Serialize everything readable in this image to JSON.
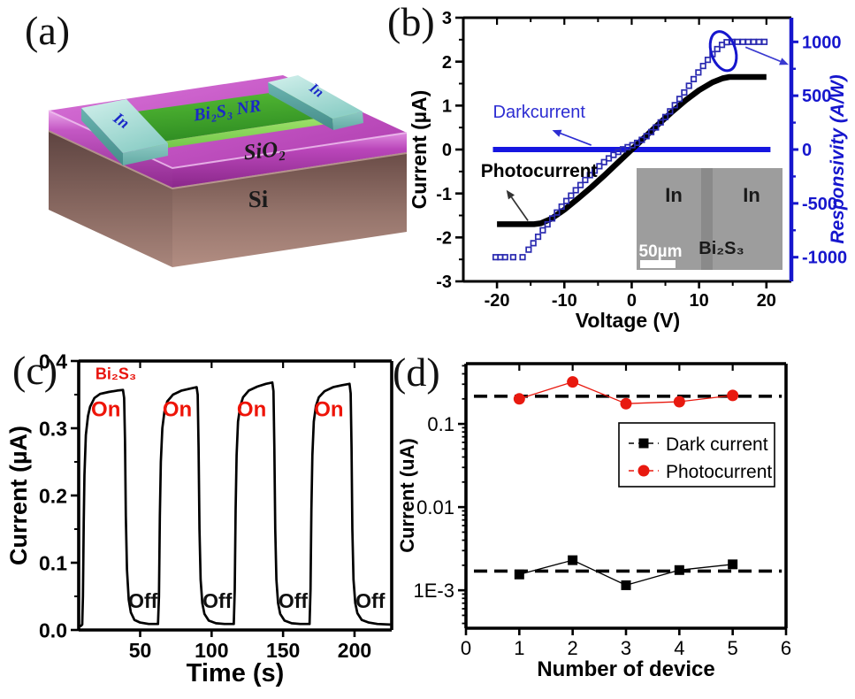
{
  "figure": {
    "background": "#ffffff",
    "panels": {
      "a": {
        "tag": "(a)",
        "labels": {
          "electrode_left": "In",
          "electrode_right": "In",
          "nanoribbon": "Bi₂S₃ NR",
          "oxide": "SiO₂",
          "substrate": "Si"
        },
        "colors": {
          "oxide": "#bb44bb",
          "substrate": "#7a5a52",
          "nanoribbon": "#3fa42c",
          "electrode": "#a9dcd6",
          "label_blue": "#1a28c8"
        }
      },
      "b": {
        "tag": "(b)"
      },
      "c": {
        "tag": "(c)"
      },
      "d": {
        "tag": "(d)"
      }
    }
  },
  "chart_data": [
    {
      "id": "b",
      "type": "line",
      "xlabel": "Voltage (V)",
      "ylabel": "Current (µA)",
      "y2label": "Responsivity (A/W)",
      "xlim": [
        -25,
        23.7
      ],
      "ylim": [
        -3,
        3
      ],
      "y2lim": [
        -1224.5,
        1224.5
      ],
      "x_major_ticks": [
        -20,
        -10,
        0,
        10,
        20
      ],
      "x_minor_ticks": [
        -15,
        -5,
        5,
        15
      ],
      "y_major_ticks": [
        -3,
        -2,
        -1,
        0,
        1,
        2,
        3
      ],
      "y_minor_ticks": [
        -2.5,
        -1.5,
        -0.5,
        0.5,
        1.5,
        2.5
      ],
      "y2_major_ticks": [
        1000,
        500,
        0,
        -500,
        -1000
      ],
      "y2_minor_ticks": [
        750,
        250,
        -250,
        -750
      ],
      "axis_color": "#000000",
      "y2_color": "#1616cd",
      "grid": false,
      "series": [
        {
          "name": "Darkcurrent",
          "type": "line",
          "axis": "y",
          "color": "#1616e0",
          "width": 6,
          "points": [
            [
              -20.6,
              0
            ],
            [
              20.6,
              0
            ]
          ]
        },
        {
          "name": "Photocurrent",
          "type": "line",
          "axis": "y",
          "color": "#000000",
          "width": 6.5,
          "points": [
            [
              -20,
              -1.7
            ],
            [
              -14.5,
              -1.7
            ],
            [
              -13.5,
              -1.68
            ],
            [
              -12,
              -1.58
            ],
            [
              -10,
              -1.37
            ],
            [
              -8,
              -1.12
            ],
            [
              -6,
              -0.86
            ],
            [
              -4,
              -0.58
            ],
            [
              -2,
              -0.29
            ],
            [
              0,
              0
            ],
            [
              2,
              0.29
            ],
            [
              4,
              0.58
            ],
            [
              6,
              0.86
            ],
            [
              8,
              1.12
            ],
            [
              10,
              1.35
            ],
            [
              12,
              1.53
            ],
            [
              13.5,
              1.62
            ],
            [
              14.5,
              1.65
            ],
            [
              20,
              1.65
            ]
          ]
        },
        {
          "name": "Responsivity",
          "type": "scatter",
          "axis": "y2",
          "marker": "square-open",
          "color": "#2a2ab0",
          "size": 5.5,
          "points": [
            [
              -20.2,
              -1000
            ],
            [
              -19.5,
              -1000
            ],
            [
              -18.8,
              -1000
            ],
            [
              -17.6,
              -1000
            ],
            [
              -16.2,
              -1000
            ],
            [
              -15.3,
              -930
            ],
            [
              -14.6,
              -870
            ],
            [
              -13.9,
              -810
            ],
            [
              -13.2,
              -750
            ],
            [
              -12.5,
              -695
            ],
            [
              -11.8,
              -640
            ],
            [
              -11.1,
              -585
            ],
            [
              -10.4,
              -530
            ],
            [
              -9.7,
              -478
            ],
            [
              -9.0,
              -428
            ],
            [
              -8.3,
              -378
            ],
            [
              -7.6,
              -330
            ],
            [
              -6.9,
              -283
            ],
            [
              -6.2,
              -238
            ],
            [
              -5.5,
              -196
            ],
            [
              -4.8,
              -155
            ],
            [
              -4.1,
              -117
            ],
            [
              -3.4,
              -82
            ],
            [
              -2.7,
              -50
            ],
            [
              -2.0,
              -22
            ],
            [
              -1.3,
              2
            ],
            [
              -0.6,
              22
            ],
            [
              0.1,
              40
            ],
            [
              0.8,
              62
            ],
            [
              1.5,
              90
            ],
            [
              2.2,
              124
            ],
            [
              2.9,
              162
            ],
            [
              3.6,
              205
            ],
            [
              4.3,
              252
            ],
            [
              5.0,
              302
            ],
            [
              5.7,
              355
            ],
            [
              6.4,
              412
            ],
            [
              7.1,
              470
            ],
            [
              7.8,
              530
            ],
            [
              8.5,
              592
            ],
            [
              9.2,
              654
            ],
            [
              9.9,
              716
            ],
            [
              10.6,
              776
            ],
            [
              11.3,
              833
            ],
            [
              12.0,
              886
            ],
            [
              12.7,
              933
            ],
            [
              13.4,
              972
            ],
            [
              14.1,
              997
            ],
            [
              14.9,
              1000
            ],
            [
              15.7,
              1000
            ],
            [
              16.5,
              1000
            ],
            [
              17.3,
              1000
            ],
            [
              18.1,
              1000
            ],
            [
              18.9,
              1000
            ],
            [
              19.7,
              1000
            ]
          ]
        }
      ],
      "annotations": [
        {
          "type": "text",
          "text": "Darkcurrent",
          "x": -20.6,
          "y": 0.72,
          "color": "#2d2dd2",
          "size": 20,
          "bold": false,
          "anchor": "start"
        },
        {
          "type": "arrow",
          "x1": -6.0,
          "y1": 0.1,
          "x2": -11.8,
          "y2": 0.44,
          "color": "#2d2dd2",
          "width": 1.7
        },
        {
          "type": "text",
          "text": "Photocurrent",
          "x": -22.4,
          "y": -0.62,
          "color": "#000000",
          "size": 21,
          "bold": true,
          "anchor": "start"
        },
        {
          "type": "arrow",
          "x1": -15.4,
          "y1": -1.62,
          "x2": -18.6,
          "y2": -0.92,
          "color": "#333333",
          "width": 1.7
        },
        {
          "type": "ellipse",
          "x": 13.6,
          "y": 2.24,
          "rx": 1.8,
          "ry": 0.46,
          "rotate": -18,
          "color": "#1616cd",
          "width": 3
        },
        {
          "type": "arrow",
          "x1": 16.9,
          "y1": 2.33,
          "x2": 23.3,
          "y2": 1.93,
          "color": "#3a3ad0",
          "width": 1.7
        }
      ],
      "inset": {
        "bg": "#9d9d9d",
        "stripe": "#8a8a8a",
        "labels": {
          "left": "In",
          "right": "In",
          "material": "Bi₂S₃",
          "scale": "50µm"
        },
        "label_color": "#1a1a1a",
        "scale_color": "#ffffff"
      }
    },
    {
      "id": "c",
      "type": "line",
      "xlabel": "Time (s)",
      "ylabel": "Current (µA)",
      "xlim": [
        7,
        226
      ],
      "ylim": [
        0,
        0.4
      ],
      "x_major_ticks": [
        50,
        100,
        150,
        200
      ],
      "x_minor_ticks": [],
      "y_major_ticks": [
        0.0,
        0.1,
        0.2,
        0.3,
        0.4
      ],
      "y_major_labels": [
        "0.0",
        "0.1",
        "0.2",
        "0.3",
        "0.4"
      ],
      "y_minor_ticks": [
        0.05,
        0.15,
        0.25,
        0.35
      ],
      "axis_color": "#000000",
      "grid": false,
      "series": [
        {
          "name": "Bi₂S₃ photoresponse",
          "type": "line",
          "axis": "y",
          "color": "#000000",
          "width": 2.7,
          "points": [
            [
              8,
              0.005
            ],
            [
              9.5,
              0.008
            ],
            [
              10,
              0.05
            ],
            [
              10.5,
              0.16
            ],
            [
              11,
              0.23
            ],
            [
              12,
              0.29
            ],
            [
              13.5,
              0.318
            ],
            [
              15,
              0.332
            ],
            [
              18,
              0.345
            ],
            [
              22,
              0.351
            ],
            [
              28,
              0.354
            ],
            [
              34,
              0.356
            ],
            [
              38,
              0.357
            ],
            [
              38.8,
              0.345
            ],
            [
              39.4,
              0.28
            ],
            [
              40,
              0.17
            ],
            [
              40.8,
              0.09
            ],
            [
              42,
              0.045
            ],
            [
              43.5,
              0.026
            ],
            [
              46,
              0.015
            ],
            [
              50,
              0.011
            ],
            [
              56,
              0.009
            ],
            [
              62.5,
              0.009
            ],
            [
              63.2,
              0.05
            ],
            [
              63.8,
              0.17
            ],
            [
              64.5,
              0.25
            ],
            [
              65.5,
              0.3
            ],
            [
              67,
              0.325
            ],
            [
              69,
              0.34
            ],
            [
              73,
              0.35
            ],
            [
              79,
              0.356
            ],
            [
              85,
              0.359
            ],
            [
              89.5,
              0.361
            ],
            [
              90.3,
              0.35
            ],
            [
              90.9,
              0.27
            ],
            [
              91.5,
              0.15
            ],
            [
              92.3,
              0.075
            ],
            [
              93.5,
              0.04
            ],
            [
              95,
              0.024
            ],
            [
              98,
              0.014
            ],
            [
              103,
              0.01
            ],
            [
              109,
              0.009
            ],
            [
              115.5,
              0.009
            ],
            [
              116.2,
              0.06
            ],
            [
              116.8,
              0.18
            ],
            [
              117.5,
              0.26
            ],
            [
              118.5,
              0.31
            ],
            [
              120,
              0.333
            ],
            [
              122,
              0.346
            ],
            [
              126,
              0.356
            ],
            [
              132,
              0.362
            ],
            [
              138,
              0.366
            ],
            [
              142.5,
              0.368
            ],
            [
              143.3,
              0.355
            ],
            [
              143.9,
              0.27
            ],
            [
              144.5,
              0.15
            ],
            [
              145.3,
              0.075
            ],
            [
              146.5,
              0.04
            ],
            [
              148,
              0.024
            ],
            [
              151,
              0.014
            ],
            [
              156,
              0.01
            ],
            [
              162,
              0.009
            ],
            [
              168.5,
              0.009
            ],
            [
              169.2,
              0.06
            ],
            [
              169.8,
              0.18
            ],
            [
              170.5,
              0.26
            ],
            [
              171.5,
              0.31
            ],
            [
              173,
              0.333
            ],
            [
              175,
              0.346
            ],
            [
              179,
              0.355
            ],
            [
              185,
              0.361
            ],
            [
              191,
              0.364
            ],
            [
              196.5,
              0.366
            ],
            [
              197.3,
              0.352
            ],
            [
              197.9,
              0.27
            ],
            [
              198.5,
              0.15
            ],
            [
              199.3,
              0.075
            ],
            [
              200.5,
              0.04
            ],
            [
              202,
              0.025
            ],
            [
              205,
              0.015
            ],
            [
              210,
              0.011
            ],
            [
              216,
              0.009
            ],
            [
              225,
              0.008
            ]
          ]
        }
      ],
      "annotations": [
        {
          "type": "text",
          "text": "Bi₂S₃",
          "x": 33,
          "y": 0.373,
          "color": "#e8130c",
          "size": 18,
          "bold": true,
          "anchor": "middle"
        },
        {
          "type": "text",
          "text": "On",
          "x": 26,
          "y": 0.318,
          "color": "#ee1408",
          "size": 24,
          "bold": true,
          "anchor": "middle"
        },
        {
          "type": "text",
          "text": "On",
          "x": 76,
          "y": 0.318,
          "color": "#ee1408",
          "size": 24,
          "bold": true,
          "anchor": "middle"
        },
        {
          "type": "text",
          "text": "On",
          "x": 128,
          "y": 0.318,
          "color": "#ee1408",
          "size": 24,
          "bold": true,
          "anchor": "middle"
        },
        {
          "type": "text",
          "text": "On",
          "x": 182,
          "y": 0.318,
          "color": "#ee1408",
          "size": 24,
          "bold": true,
          "anchor": "middle"
        },
        {
          "type": "text",
          "text": "Off",
          "x": 52,
          "y": 0.033,
          "color": "#111111",
          "size": 23,
          "bold": true,
          "anchor": "middle"
        },
        {
          "type": "text",
          "text": "Off",
          "x": 104,
          "y": 0.033,
          "color": "#111111",
          "size": 23,
          "bold": true,
          "anchor": "middle"
        },
        {
          "type": "text",
          "text": "Off",
          "x": 157,
          "y": 0.033,
          "color": "#111111",
          "size": 23,
          "bold": true,
          "anchor": "middle"
        },
        {
          "type": "text",
          "text": "Off",
          "x": 211,
          "y": 0.033,
          "color": "#111111",
          "size": 23,
          "bold": true,
          "anchor": "middle"
        }
      ]
    },
    {
      "id": "d",
      "type": "scatter",
      "xlabel": "Number of device",
      "ylabel": "Current (uA)",
      "xlim": [
        0,
        6
      ],
      "ylim": [
        0.00035,
        0.53
      ],
      "ylog": true,
      "x_major_ticks": [
        0,
        1,
        2,
        3,
        4,
        5,
        6
      ],
      "x_minor_ticks": [],
      "y_major_ticks": [
        0.1,
        0.01,
        0.001
      ],
      "y_major_labels": [
        "0.1",
        "0.01",
        "1E-3"
      ],
      "axis_color": "#000000",
      "grid": false,
      "series": [
        {
          "name": "Dark current",
          "type": "line+scatter",
          "axis": "y",
          "marker": "square",
          "color": "#000000",
          "size": 11,
          "width": 1.3,
          "points": [
            [
              1,
              0.00155
            ],
            [
              2,
              0.0023
            ],
            [
              3,
              0.00115
            ],
            [
              4,
              0.00175
            ],
            [
              5,
              0.00205
            ]
          ]
        },
        {
          "name": "Photocurrent",
          "type": "line+scatter",
          "axis": "y",
          "marker": "circle",
          "color": "#e8190f",
          "size": 13,
          "width": 1.3,
          "points": [
            [
              1,
              0.2
            ],
            [
              2,
              0.32
            ],
            [
              3,
              0.175
            ],
            [
              4,
              0.185
            ],
            [
              5,
              0.22
            ]
          ]
        }
      ],
      "ref_lines": [
        {
          "y": 0.215,
          "x1": 0.15,
          "x2": 5.92,
          "color": "#000000",
          "width": 3.6,
          "dash": "15,8"
        },
        {
          "y": 0.0017,
          "x1": 0.15,
          "x2": 5.92,
          "color": "#000000",
          "width": 3.6,
          "dash": "15,8"
        }
      ],
      "legend": {
        "entries": [
          {
            "label": "Dark current",
            "marker": "square",
            "color": "#000000"
          },
          {
            "label": "Photocurrent",
            "marker": "circle",
            "color": "#e8190f"
          }
        ]
      }
    }
  ]
}
